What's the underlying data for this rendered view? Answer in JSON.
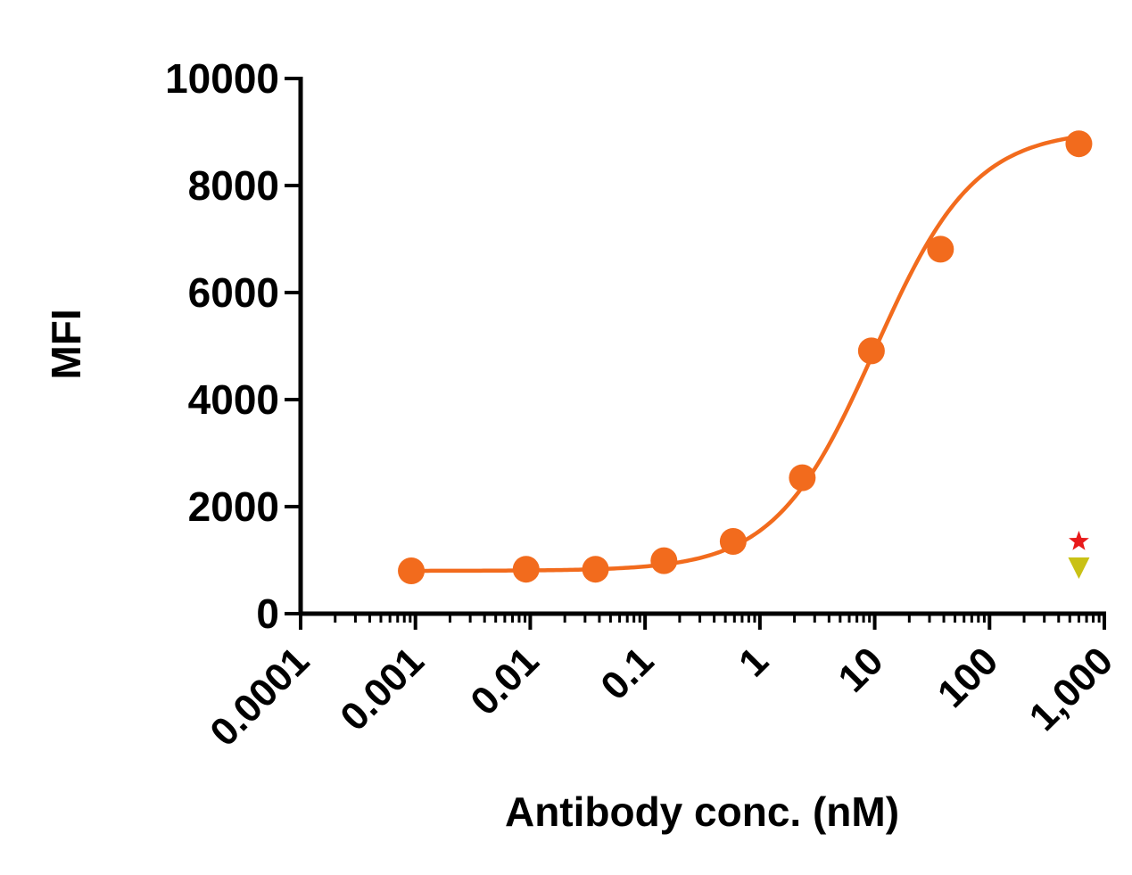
{
  "chart_data": {
    "type": "scatter",
    "title": "",
    "xlabel": "Antibody conc. (nM)",
    "ylabel": "MFI",
    "x_scale": "log",
    "xlim": [
      0.0001,
      1000
    ],
    "ylim": [
      0,
      10000
    ],
    "x_ticks": [
      {
        "value": 0.0001,
        "label": "0.0001"
      },
      {
        "value": 0.001,
        "label": "0.001"
      },
      {
        "value": 0.01,
        "label": "0.01"
      },
      {
        "value": 0.1,
        "label": "0.1"
      },
      {
        "value": 1,
        "label": "1"
      },
      {
        "value": 10,
        "label": "10"
      },
      {
        "value": 100,
        "label": "100"
      },
      {
        "value": 1000,
        "label": "1,000"
      }
    ],
    "y_ticks": [
      {
        "value": 0,
        "label": "0"
      },
      {
        "value": 2000,
        "label": "2000"
      },
      {
        "value": 4000,
        "label": "4000"
      },
      {
        "value": 6000,
        "label": "6000"
      },
      {
        "value": 8000,
        "label": "8000"
      },
      {
        "value": 10000,
        "label": "10000"
      }
    ],
    "grid": false,
    "legend": "none",
    "series": [
      {
        "marker": "circle",
        "color": "#f26b1d",
        "fit_curve": "4PL",
        "points": [
          {
            "x": 0.00092,
            "y": 800
          },
          {
            "x": 0.0092,
            "y": 830
          },
          {
            "x": 0.037,
            "y": 830
          },
          {
            "x": 0.146,
            "y": 990
          },
          {
            "x": 0.585,
            "y": 1350
          },
          {
            "x": 2.34,
            "y": 2540
          },
          {
            "x": 9.36,
            "y": 4910
          },
          {
            "x": 37.4,
            "y": 6810
          },
          {
            "x": 600,
            "y": 8780
          }
        ]
      },
      {
        "marker": "star",
        "color": "#e8191a",
        "points": [
          {
            "x": 600,
            "y": 1350
          }
        ]
      },
      {
        "marker": "triangle-down",
        "color": "#c9c115",
        "points": [
          {
            "x": 600,
            "y": 850
          }
        ]
      }
    ]
  }
}
